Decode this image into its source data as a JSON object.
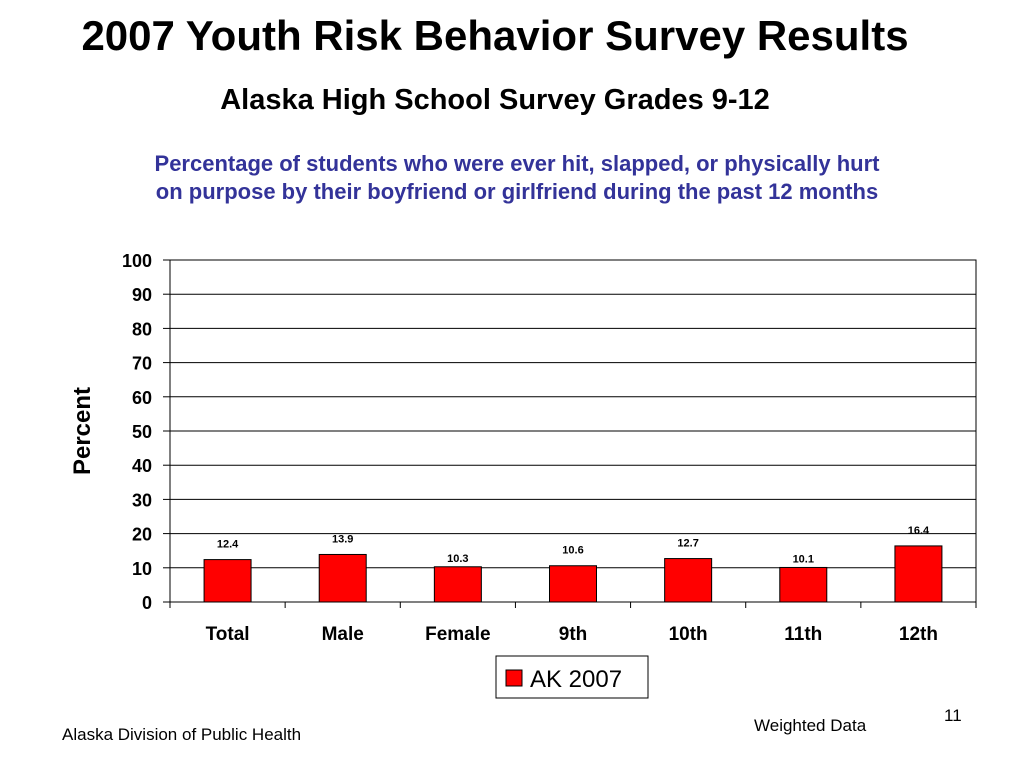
{
  "slide": {
    "title": "2007 Youth Risk Behavior Survey Results",
    "subtitle": "Alaska High School Survey Grades 9-12",
    "question_line1": "Percentage of students who were ever hit, slapped, or physically hurt",
    "question_line2": "on purpose by their boyfriend or girlfriend during the past 12 months",
    "footer_left": "Alaska Division of Public Health",
    "footer_note": "Weighted Data",
    "page_number": "11"
  },
  "chart_data": {
    "type": "bar",
    "categories": [
      "Total",
      "Male",
      "Female",
      "9th",
      "10th",
      "11th",
      "12th"
    ],
    "series": [
      {
        "name": "AK 2007",
        "values": [
          12.4,
          13.9,
          10.3,
          10.6,
          12.7,
          10.1,
          16.4
        ],
        "color": "#ff0000"
      }
    ],
    "data_labels": [
      "12.4",
      "13.9",
      "10.3",
      "10.6",
      "12.7",
      "10.1",
      "16.4"
    ],
    "ylabel": "Percent",
    "xlabel": "",
    "ylim": [
      0,
      100
    ],
    "yticks": [
      0,
      10,
      20,
      30,
      40,
      50,
      60,
      70,
      80,
      90,
      100
    ],
    "grid": true,
    "legend_position": "bottom-center"
  }
}
